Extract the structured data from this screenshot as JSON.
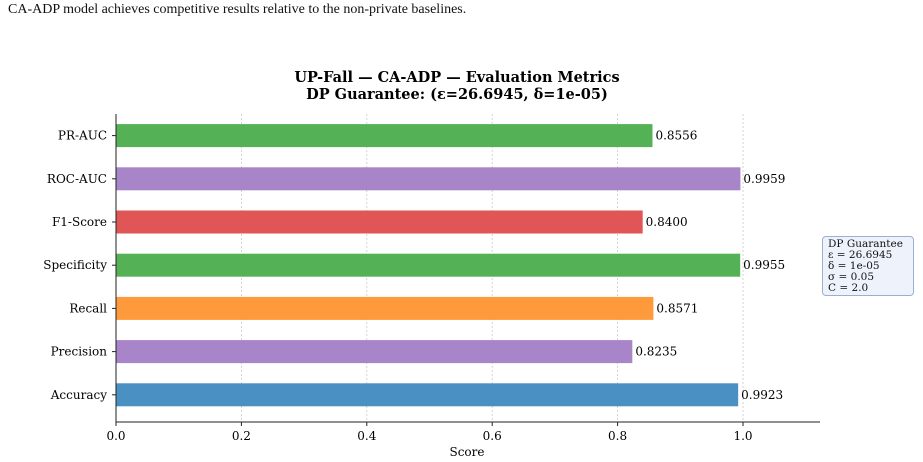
{
  "caption": "CA-ADP model achieves competitive results relative to the non-private baselines.",
  "chart_data": {
    "type": "bar",
    "orientation": "horizontal",
    "title": "UP-Fall — CA-ADP — Evaluation Metrics",
    "subtitle": "DP Guarantee: (ε=26.6945, δ=1e-05)",
    "xlabel": "Score",
    "ylabel": "",
    "xlim": [
      0,
      1.12
    ],
    "xticks": [
      "0.0",
      "0.2",
      "0.4",
      "0.6",
      "0.8",
      "1.0"
    ],
    "grid": "x-dotted",
    "categories": [
      "PR-AUC",
      "ROC-AUC",
      "F1-Score",
      "Specificity",
      "Recall",
      "Precision",
      "Accuracy"
    ],
    "values": [
      0.8556,
      0.9959,
      0.84,
      0.9955,
      0.8571,
      0.8235,
      0.9923
    ],
    "value_labels": [
      "0.8556",
      "0.9959",
      "0.8400",
      "0.9955",
      "0.8571",
      "0.8235",
      "0.9923"
    ],
    "colors": [
      "#55b156",
      "#a884c9",
      "#e05555",
      "#55b156",
      "#ff9a3c",
      "#a884c9",
      "#4a90c2"
    ]
  },
  "annotation": {
    "lines": [
      "DP Guarantee",
      "ε = 26.6945",
      "δ = 1e-05",
      "σ = 0.05",
      "C = 2.0"
    ]
  }
}
